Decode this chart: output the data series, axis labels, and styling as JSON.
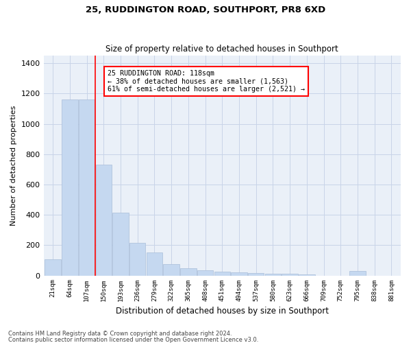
{
  "title1": "25, RUDDINGTON ROAD, SOUTHPORT, PR8 6XD",
  "title2": "Size of property relative to detached houses in Southport",
  "xlabel": "Distribution of detached houses by size in Southport",
  "ylabel": "Number of detached properties",
  "categories": [
    "21sqm",
    "64sqm",
    "107sqm",
    "150sqm",
    "193sqm",
    "236sqm",
    "279sqm",
    "322sqm",
    "365sqm",
    "408sqm",
    "451sqm",
    "494sqm",
    "537sqm",
    "580sqm",
    "623sqm",
    "666sqm",
    "709sqm",
    "752sqm",
    "795sqm",
    "838sqm",
    "881sqm"
  ],
  "values": [
    105,
    1160,
    1160,
    730,
    415,
    215,
    150,
    75,
    50,
    35,
    25,
    20,
    15,
    13,
    10,
    8,
    0,
    0,
    30,
    0,
    0
  ],
  "bar_color": "#c5d8f0",
  "bar_edge_color": "#a8bdd8",
  "red_line_x": 2.5,
  "annotation_line1": "25 RUDDINGTON ROAD: 118sqm",
  "annotation_line2": "← 38% of detached houses are smaller (1,563)",
  "annotation_line3": "61% of semi-detached houses are larger (2,521) →",
  "footnote1": "Contains HM Land Registry data © Crown copyright and database right 2024.",
  "footnote2": "Contains public sector information licensed under the Open Government Licence v3.0.",
  "ylim": [
    0,
    1450
  ],
  "yticks": [
    0,
    200,
    400,
    600,
    800,
    1000,
    1200,
    1400
  ],
  "background_color": "#ffffff",
  "axes_bg_color": "#eaf0f8",
  "grid_color": "#c8d4e8"
}
